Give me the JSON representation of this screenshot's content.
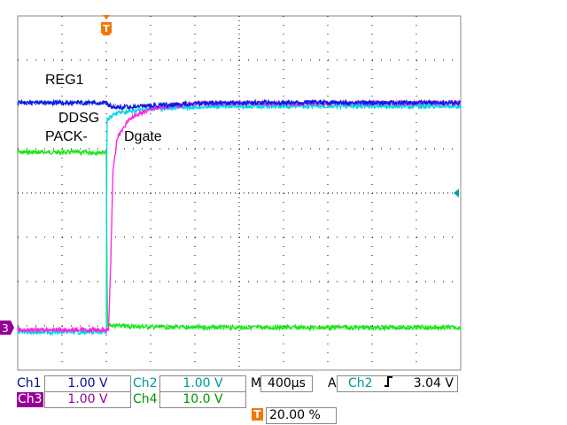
{
  "chart_data": {
    "type": "line",
    "title": "",
    "xlabel": "",
    "ylabel": "",
    "grid": true,
    "x_unit": "µs",
    "xlim": [
      -800,
      3200
    ],
    "divisions": {
      "x": 10,
      "y": 8
    },
    "trigger_position_percent": 20.0,
    "series": [
      {
        "name": "REG1",
        "channel": "Ch1",
        "color": "#0a1ee6",
        "volts_per_div": 1.0,
        "points": [
          [
            -800,
            5.08
          ],
          [
            0,
            5.08
          ],
          [
            50,
            4.98
          ],
          [
            200,
            4.98
          ],
          [
            600,
            5.04
          ],
          [
            1000,
            5.08
          ],
          [
            3200,
            5.08
          ]
        ]
      },
      {
        "name": "DDSG",
        "channel": "Ch2",
        "color": "#00d6e6",
        "volts_per_div": 1.0,
        "points": [
          [
            -800,
            -0.1
          ],
          [
            0,
            -0.1
          ],
          [
            5,
            4.7
          ],
          [
            100,
            4.85
          ],
          [
            400,
            4.94
          ],
          [
            1000,
            5.0
          ],
          [
            3200,
            5.0
          ]
        ]
      },
      {
        "name": "Dgate",
        "channel": "Ch3",
        "color": "#ff1ee6",
        "volts_per_div": 1.0,
        "points": [
          [
            -800,
            -0.05
          ],
          [
            20,
            -0.05
          ],
          [
            40,
            1.5
          ],
          [
            60,
            3.5
          ],
          [
            100,
            4.3
          ],
          [
            200,
            4.7
          ],
          [
            400,
            4.95
          ],
          [
            800,
            5.06
          ],
          [
            3200,
            5.08
          ]
        ]
      },
      {
        "name": "PACK-",
        "channel": "Ch4",
        "color": "#1ee61e",
        "volts_per_div": 10.0,
        "points": [
          [
            -800,
            39.6
          ],
          [
            0,
            39.6
          ],
          [
            10,
            0.5
          ],
          [
            200,
            0.3
          ],
          [
            600,
            0.05
          ],
          [
            3200,
            0.0
          ]
        ]
      }
    ]
  },
  "labels": {
    "reg1": "REG1",
    "ddsg": "DDSG",
    "pack": "PACK-",
    "dgate": "Dgate"
  },
  "markers": {
    "trigger": "T",
    "ch3_ground": "3"
  },
  "status": {
    "ch1": {
      "label": "Ch1",
      "value": "1.00 V",
      "color": "#0a0a96"
    },
    "ch2": {
      "label": "Ch2",
      "value": "1.00 V",
      "color": "#009696"
    },
    "ch3": {
      "label": "Ch3",
      "value": "1.00 V",
      "color": "#960096"
    },
    "ch4": {
      "label": "Ch4",
      "value": "10.0 V",
      "color": "#009600"
    },
    "timebase_label": "M",
    "timebase": "400µs",
    "trigger_mode": "A",
    "trigger_source": "Ch2",
    "trigger_slope_icon": "rising-edge-icon",
    "trigger_level": "3.04 V",
    "trigger_icon": "T",
    "trigger_position": "20.00 %"
  }
}
